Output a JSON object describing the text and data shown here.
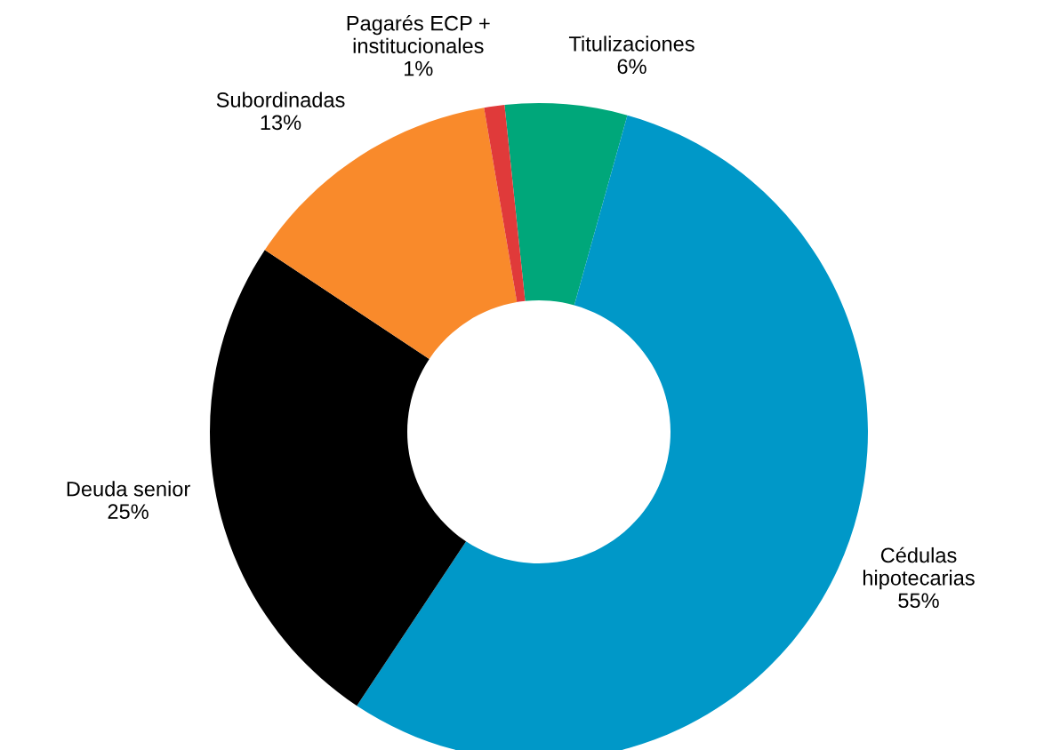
{
  "chart_data": {
    "type": "donut",
    "categories": [
      "Titulizaciones",
      "Cédulas\nhipotecarias",
      "Deuda senior",
      "Subordinadas",
      "Pagarés ECP +\ninstitucionales"
    ],
    "values": [
      6,
      55,
      25,
      13,
      1
    ],
    "value_labels": [
      "6%",
      "55%",
      "25%",
      "13%",
      "1%"
    ],
    "colors": [
      "#00a77a",
      "#0098c8",
      "#000000",
      "#f98a2b",
      "#e03a3a"
    ]
  }
}
